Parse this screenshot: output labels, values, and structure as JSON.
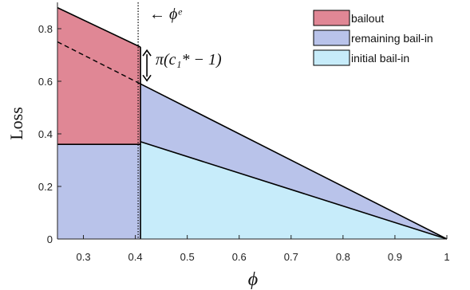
{
  "chart_data": {
    "type": "area",
    "title": "",
    "xlabel": "ϕ",
    "ylabel": "Loss",
    "xlim": [
      0.25,
      1
    ],
    "ylim": [
      0,
      0.9
    ],
    "grid": false,
    "legend_position": "top-right",
    "xticks": [
      "0.3",
      "0.4",
      "0.5",
      "0.6",
      "0.7",
      "0.8",
      "0.9",
      "1"
    ],
    "xtick_values": [
      0.3,
      0.4,
      0.5,
      0.6,
      0.7,
      0.8,
      0.9,
      1
    ],
    "yticks": [
      "0",
      "0.2",
      "0.4",
      "0.6",
      "0.8"
    ],
    "ytick_values": [
      0,
      0.2,
      0.4,
      0.6,
      0.8
    ],
    "phi_e": 0.41,
    "series": [
      {
        "name": "bailout",
        "color": "#e08795",
        "lower": [
          [
            0.25,
            0.36
          ],
          [
            0.41,
            0.36
          ]
        ],
        "upper": [
          [
            0.25,
            0.88
          ],
          [
            0.41,
            0.73
          ]
        ]
      },
      {
        "name": "remaining bail-in",
        "color": "#b9c3ea",
        "lower": [
          [
            0.25,
            0
          ],
          [
            0.41,
            0
          ],
          [
            0.41,
            0.37
          ],
          [
            1,
            0
          ]
        ],
        "upper": [
          [
            0.25,
            0.36
          ],
          [
            0.41,
            0.36
          ],
          [
            0.41,
            0.59
          ],
          [
            1,
            0
          ]
        ]
      },
      {
        "name": "initial bail-in",
        "color": "#c7ecfa",
        "lower": [
          [
            0.41,
            0
          ],
          [
            1,
            0
          ]
        ],
        "upper": [
          [
            0.41,
            0.37
          ],
          [
            1,
            0
          ]
        ]
      }
    ],
    "dashed_line": [
      [
        0.25,
        0.75
      ],
      [
        0.41,
        0.59
      ]
    ],
    "annotations": {
      "phi_e_label": "← ϕᵉ",
      "gap_label": "π(c₁* − 1)"
    }
  }
}
